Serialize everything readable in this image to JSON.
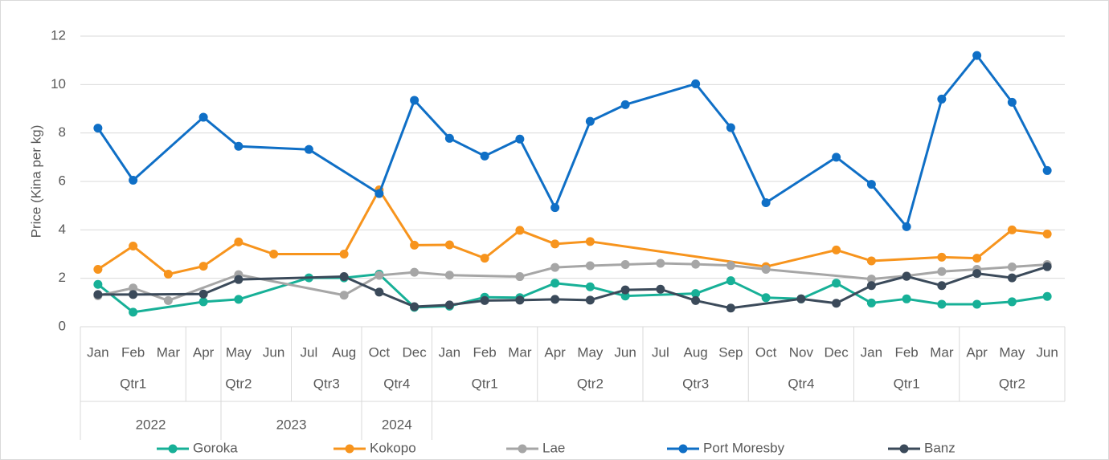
{
  "chart_data": {
    "type": "line",
    "y_label": "Price (Kina per kg)",
    "categories": [
      "Jan",
      "Feb",
      "Mar",
      "Apr",
      "May",
      "Jun",
      "Jul",
      "Aug",
      "Oct",
      "Dec",
      "Jan",
      "Feb",
      "Mar",
      "Apr",
      "May",
      "Jun",
      "Jul",
      "Aug",
      "Sep",
      "Oct",
      "Nov",
      "Dec",
      "Jan",
      "Feb",
      "Mar",
      "Apr",
      "May",
      "Jun"
    ],
    "quarters": [
      {
        "label": "Qtr1",
        "count": 3
      },
      {
        "label": "Qtr2",
        "count": 3
      },
      {
        "label": "Qtr3",
        "count": 2
      },
      {
        "label": "Qtr4",
        "count": 2
      },
      {
        "label": "Qtr1",
        "count": 3
      },
      {
        "label": "Qtr2",
        "count": 3
      },
      {
        "label": "Qtr3",
        "count": 3
      },
      {
        "label": "Qtr4",
        "count": 3
      },
      {
        "label": "Qtr1",
        "count": 3
      },
      {
        "label": "Qtr2",
        "count": 3
      }
    ],
    "years": [
      {
        "label": "2022",
        "count": 4
      },
      {
        "label": "2023",
        "count": 4
      },
      {
        "label": "2024",
        "count": 2
      }
    ],
    "ylim": [
      0,
      12
    ],
    "yticks": [
      0,
      2,
      4,
      6,
      8,
      10,
      12
    ],
    "grid": true,
    "span_gaps": true,
    "legend": "bottom",
    "series": [
      {
        "name": "Goroka",
        "color": "#17b097",
        "values": [
          1.75,
          0.6,
          null,
          1.03,
          1.13,
          null,
          2.02,
          2.02,
          2.17,
          0.8,
          0.85,
          1.22,
          1.2,
          1.8,
          1.65,
          1.27,
          null,
          1.37,
          1.9,
          1.2,
          1.15,
          1.8,
          0.98,
          1.15,
          0.93,
          0.93,
          1.03,
          1.25
        ]
      },
      {
        "name": "Kokopo",
        "color": "#f7941d",
        "values": [
          2.37,
          3.33,
          2.17,
          2.5,
          3.5,
          3.0,
          null,
          3.0,
          5.65,
          3.37,
          3.38,
          2.83,
          3.98,
          3.42,
          3.52,
          null,
          null,
          null,
          null,
          2.48,
          null,
          3.17,
          2.72,
          null,
          2.87,
          2.83,
          4.0,
          3.83
        ]
      },
      {
        "name": "Lae",
        "color": "#a6a6a6",
        "values": [
          1.28,
          1.6,
          1.08,
          null,
          2.15,
          null,
          null,
          1.3,
          2.12,
          2.25,
          2.13,
          null,
          2.07,
          2.45,
          2.52,
          2.57,
          2.62,
          2.58,
          2.53,
          2.37,
          null,
          null,
          1.97,
          2.1,
          2.28,
          2.37,
          2.47,
          2.57
        ]
      },
      {
        "name": "Port Moresby",
        "color": "#0f6fc6",
        "values": [
          8.2,
          6.05,
          null,
          8.65,
          7.45,
          null,
          7.32,
          null,
          5.5,
          9.35,
          7.78,
          7.05,
          7.75,
          4.92,
          8.48,
          9.17,
          null,
          10.03,
          8.22,
          5.12,
          null,
          7.0,
          5.88,
          4.13,
          9.4,
          11.2,
          9.27,
          6.45
        ]
      },
      {
        "name": "Banz",
        "color": "#3b4a5a",
        "values": [
          1.33,
          1.33,
          null,
          1.35,
          1.95,
          null,
          null,
          2.07,
          1.43,
          0.83,
          0.9,
          1.08,
          1.1,
          1.13,
          1.1,
          1.52,
          1.55,
          1.08,
          0.77,
          null,
          1.15,
          0.97,
          1.7,
          2.08,
          1.7,
          2.2,
          2.02,
          2.48
        ]
      }
    ]
  }
}
